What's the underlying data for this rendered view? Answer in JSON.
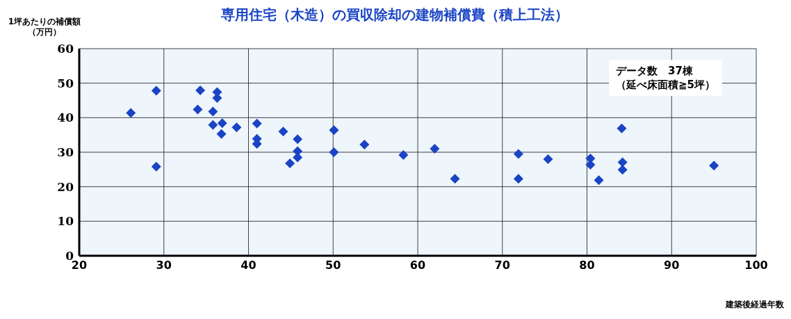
{
  "chart_data": {
    "type": "scatter",
    "title": "専用住宅（木造）の買収除却の建物補償費（積上工法）",
    "xlabel": "建築後経過年数",
    "ylabel": "1坪あたりの補償額（万円）",
    "annotations": [
      "データ数　37棟",
      "（延べ床面積≧5坪）"
    ],
    "x": [
      26.1,
      29.1,
      29.1,
      34.3,
      34.0,
      36.3,
      36.3,
      35.8,
      35.8,
      36.9,
      36.8,
      38.6,
      41.0,
      41.0,
      41.0,
      44.1,
      45.8,
      45.8,
      45.8,
      44.9,
      50.1,
      50.1,
      53.7,
      58.3,
      62.0,
      64.4,
      71.9,
      71.9,
      75.4,
      80.4,
      80.4,
      81.4,
      84.1,
      84.2,
      84.2,
      95.0
    ],
    "series": [
      {
        "color": "#1a44c4",
        "values": [
          41.4,
          47.8,
          25.8,
          47.9,
          42.4,
          47.4,
          45.7,
          41.8,
          37.9,
          38.4,
          35.3,
          37.2,
          38.3,
          33.9,
          32.4,
          36.0,
          33.8,
          30.3,
          28.5,
          26.8,
          36.4,
          30.0,
          32.2,
          29.2,
          31.0,
          22.3,
          29.5,
          22.3,
          28.0,
          28.2,
          26.4,
          21.9,
          36.9,
          27.1,
          24.9,
          26.1
        ]
      }
    ],
    "xlim": [
      20,
      100
    ],
    "ylim": [
      0,
      60
    ],
    "xticks": [
      20,
      30,
      40,
      50,
      60,
      70,
      80,
      90,
      100
    ],
    "yticks": [
      0,
      10,
      20,
      30,
      40,
      50,
      60
    ],
    "grid": true,
    "legend": false,
    "marker": "diamond"
  }
}
